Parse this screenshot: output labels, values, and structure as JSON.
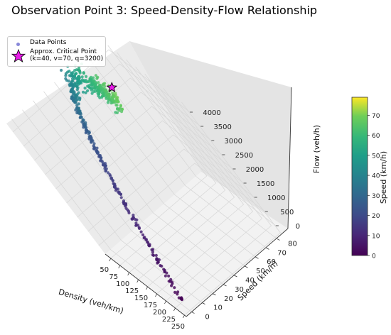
{
  "chart_data": {
    "type": "scatter",
    "projection": "3d",
    "title": "Observation Point 3: Speed-Density-Flow Relationship",
    "xlabel": "Density (veh/km)",
    "ylabel": "Speed (km/h)",
    "zlabel": "Flow (veh/h)",
    "xticks": [
      "50",
      "75",
      "100",
      "125",
      "150",
      "175",
      "200",
      "225",
      "250"
    ],
    "yticks": [
      "0",
      "10",
      "20",
      "30",
      "40",
      "50",
      "60",
      "70",
      "80"
    ],
    "zticks": [
      "0",
      "500",
      "1000",
      "1500",
      "2000",
      "2500",
      "3000",
      "3500",
      "4000"
    ],
    "xlim": [
      35,
      255
    ],
    "ylim": [
      -5,
      85
    ],
    "zlim": [
      -300,
      4300
    ],
    "colorbar": {
      "label": "Speed (km/h)",
      "ticks": [
        "0",
        "10",
        "20",
        "30",
        "40",
        "50",
        "60",
        "70"
      ],
      "range": [
        0,
        79
      ],
      "colormap": "viridis"
    },
    "legend": {
      "placement": "top-left",
      "entries": [
        {
          "label": "Data Points",
          "marker": "dot"
        },
        {
          "label": "Approx. Critical Point",
          "label_line2": "(k=40, v=70, q=3200)",
          "marker": "star",
          "color": "#e81ee8"
        }
      ]
    },
    "critical_point": {
      "k": 40,
      "v": 70,
      "q": 3200
    },
    "model": {
      "description_shown": false,
      "free_flow_speed": 80,
      "jam_density": 250
    },
    "series": [
      {
        "name": "Data Points",
        "sample_points_k_v_q": [
          [
            42,
            76,
            3190
          ],
          [
            45,
            75,
            3380
          ],
          [
            48,
            72,
            3460
          ],
          [
            52,
            70,
            3640
          ],
          [
            55,
            66,
            3620
          ],
          [
            60,
            63,
            3780
          ],
          [
            65,
            60,
            3900
          ],
          [
            70,
            56,
            3920
          ],
          [
            80,
            52,
            4150
          ],
          [
            90,
            47,
            4230
          ],
          [
            100,
            43,
            4300
          ],
          [
            110,
            38,
            4180
          ],
          [
            120,
            34,
            4080
          ],
          [
            135,
            30,
            4050
          ],
          [
            150,
            25,
            3750
          ],
          [
            165,
            20,
            3300
          ],
          [
            180,
            17,
            3060
          ],
          [
            195,
            13,
            2535
          ],
          [
            210,
            10,
            2100
          ],
          [
            225,
            6,
            1350
          ],
          [
            240,
            3,
            720
          ],
          [
            248,
            1,
            250
          ]
        ]
      }
    ]
  }
}
